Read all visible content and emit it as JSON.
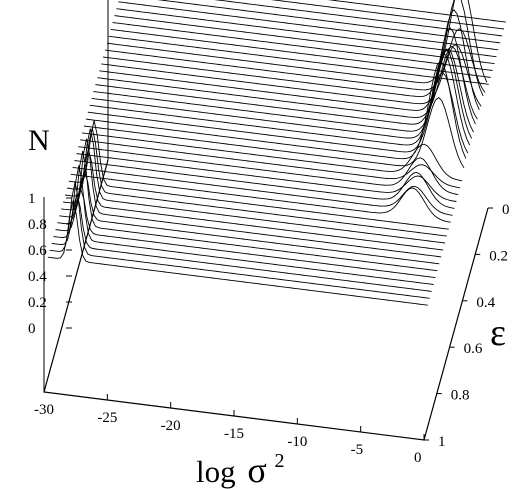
{
  "chart_data": {
    "type": "line",
    "title": "",
    "xlabel": "log σ²",
    "xlabel_parts": {
      "base": "log",
      "symbol": "σ",
      "exponent": "2"
    },
    "ylabel": "ε",
    "zlabel": "N",
    "x_ticks": [
      "-30",
      "-25",
      "-20",
      "-15",
      "-10",
      "-5",
      "0"
    ],
    "y_ticks": [
      "0",
      "0.2",
      "0.4",
      "0.6",
      "0.8",
      "1"
    ],
    "z_ticks": [
      "0",
      "0.2",
      "0.4",
      "0.6",
      "0.8",
      "1"
    ],
    "xlim": [
      -30,
      0
    ],
    "ylim": [
      0,
      1
    ],
    "zlim": [
      0,
      1
    ],
    "grid": false,
    "legend": "none",
    "surface": {
      "style": "waterfall",
      "series_count": 42,
      "description_free_peaks": [
        {
          "x": -28,
          "eps_range": [
            0.6,
            0.95
          ],
          "height": 0.7
        },
        {
          "x": -2,
          "eps_range": [
            0.0,
            0.4
          ],
          "height": 1.0
        },
        {
          "x": -3,
          "eps_range": [
            0.4,
            0.6
          ],
          "height": 0.3
        }
      ]
    },
    "line_color": "#000000"
  }
}
